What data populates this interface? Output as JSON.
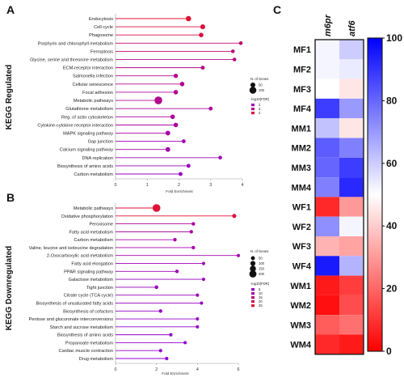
{
  "panel_letters": {
    "a": "A",
    "b": "B",
    "c": "C"
  },
  "chart_data": [
    {
      "type": "lollipop",
      "panel": "A",
      "ylabel": "KEGG Regulated",
      "xlabel": "Fold Enrichment",
      "xlim": [
        0,
        4
      ],
      "xticks": [
        0,
        1,
        2,
        3,
        4
      ],
      "legend_size_title": "N. of Genes",
      "legend_size_items": [
        {
          "label": "50",
          "value": 50
        },
        {
          "label": "100",
          "value": 100
        }
      ],
      "legend_color_title": "-log10(FDR)",
      "legend_color_items": [
        {
          "label": "2",
          "value": 2
        },
        {
          "label": "3",
          "value": 3
        },
        {
          "label": "4",
          "value": 4
        }
      ],
      "color_range": [
        1.5,
        4.5
      ],
      "categories": [
        "Endocytosis",
        "Cell cycle",
        "Phagosome",
        "Porphyrin and chlorophyll metabolism",
        "Ferroptosis",
        "Glycine, serine and threonine metabolism",
        "ECM-receptor interaction",
        "Salmonella infection",
        "Cellular senescence",
        "Focal adhesion",
        "Metabolic pathways",
        "Glutathione metabolism",
        "Reg. of actin cytoskeleton",
        "Cytokine-cytokine receptor interaction",
        "MAPK signaling pathway",
        "Gap junction",
        "Calcium signaling pathway",
        "DNA replication",
        "Biosynthesis of amino acids",
        "Carbon metabolism"
      ],
      "values": [
        2.3,
        2.75,
        2.7,
        3.95,
        3.7,
        3.75,
        2.75,
        1.9,
        2.1,
        1.9,
        1.35,
        3.0,
        1.8,
        1.9,
        1.65,
        2.15,
        1.65,
        3.3,
        2.3,
        2.05
      ],
      "genes": [
        60,
        50,
        40,
        20,
        20,
        20,
        25,
        35,
        40,
        40,
        120,
        25,
        40,
        40,
        45,
        25,
        45,
        20,
        25,
        25
      ],
      "neglog10fdr": [
        4.3,
        4.1,
        4.0,
        3.3,
        3.2,
        3.0,
        2.9,
        2.8,
        2.8,
        2.7,
        2.8,
        2.6,
        2.6,
        2.5,
        2.4,
        2.2,
        2.3,
        2.1,
        2.0,
        1.9
      ]
    },
    {
      "type": "lollipop",
      "panel": "B",
      "ylabel": "KEGG Downregulated",
      "xlabel": "Fold Enrichment",
      "xlim": [
        0,
        6
      ],
      "xticks": [
        0,
        2,
        4,
        6
      ],
      "legend_size_title": "N. of Genes",
      "legend_size_items": [
        {
          "label": "50",
          "value": 50
        },
        {
          "label": "100",
          "value": 100
        },
        {
          "label": "150",
          "value": 150
        },
        {
          "label": "200",
          "value": 200
        }
      ],
      "legend_color_title": "-log10(FDR)",
      "legend_color_items": [
        {
          "label": "5",
          "value": 5
        },
        {
          "label": "10",
          "value": 10
        },
        {
          "label": "15",
          "value": 15
        },
        {
          "label": "20",
          "value": 20
        },
        {
          "label": "25",
          "value": 25
        }
      ],
      "color_range": [
        3,
        27
      ],
      "categories": [
        "Metabolic pathways",
        "Oxidative phosphorylation",
        "Peroxisome",
        "Fatty acid metabolism",
        "Carbon metabolism",
        "Valine, leucine and isoleucine degradation",
        "2-Oxocarboxylic acid metabolism",
        "Fatty acid elongation",
        "PPAR signaling pathway",
        "Galactose metabolism",
        "Tight junction",
        "Citrate cycle (TCA cycle)",
        "Biosynthesis of unsaturated fatty acids",
        "Biosynthesis of cofactors",
        "Pentose and glucuronate interconversions",
        "Starch and sucrose metabolism",
        "Biosynthesis of amino acids",
        "Propanoate metabolism",
        "Cardiac muscle contraction",
        "Drug metabolism"
      ],
      "values": [
        2.0,
        5.8,
        3.8,
        3.7,
        2.9,
        3.8,
        6.0,
        4.3,
        3.0,
        4.3,
        2.0,
        4.0,
        4.2,
        2.2,
        4.0,
        4.0,
        2.7,
        3.4,
        2.2,
        2.5
      ],
      "genes": [
        230,
        60,
        35,
        30,
        30,
        30,
        15,
        20,
        25,
        15,
        35,
        20,
        15,
        30,
        20,
        20,
        25,
        15,
        25,
        25
      ],
      "neglog10fdr": [
        25,
        25,
        12,
        11,
        10,
        10,
        9,
        8,
        8,
        7,
        7,
        7,
        6,
        6,
        6,
        5,
        5,
        5,
        5,
        4
      ]
    },
    {
      "type": "heatmap",
      "panel": "C",
      "columns": [
        "m6pr",
        "atf6"
      ],
      "rows": [
        "MF1",
        "MF2",
        "MF3",
        "MF4",
        "MM1",
        "MM2",
        "MM3",
        "MM4",
        "WF1",
        "WF2",
        "WF3",
        "WF4",
        "WM1",
        "WM2",
        "WM3",
        "WM4"
      ],
      "values": [
        [
          52,
          60
        ],
        [
          52,
          54
        ],
        [
          50,
          45
        ],
        [
          88,
          70
        ],
        [
          62,
          45
        ],
        [
          82,
          75
        ],
        [
          80,
          88
        ],
        [
          75,
          92
        ],
        [
          8,
          30
        ],
        [
          72,
          52
        ],
        [
          35,
          32
        ],
        [
          95,
          65
        ],
        [
          5,
          12
        ],
        [
          3,
          15
        ],
        [
          18,
          22
        ],
        [
          8,
          5
        ]
      ],
      "colorbar_ticks": [
        0,
        20,
        40,
        60,
        80,
        100
      ],
      "colorbar_range": [
        0,
        100
      ],
      "colors": {
        "low": "#ff0000",
        "mid": "#ffffff",
        "high": "#0000ff"
      }
    }
  ]
}
